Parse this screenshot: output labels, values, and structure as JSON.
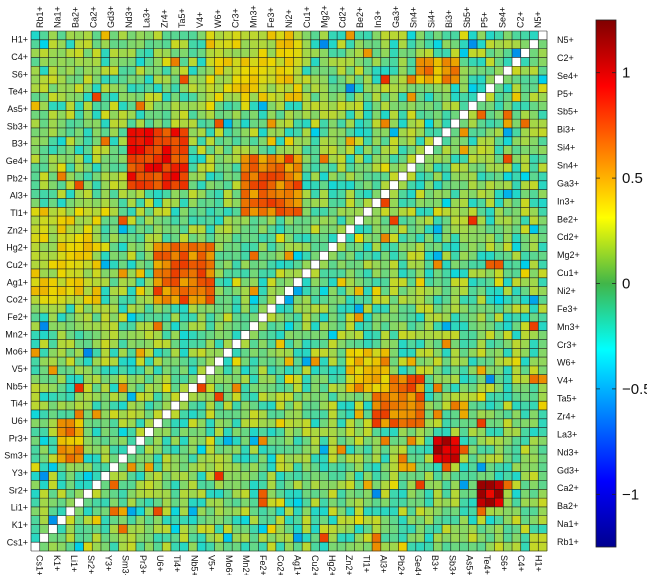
{
  "chart_data": {
    "type": "heatmap",
    "rows_left": [
      "H1+",
      "C4+",
      "S6+",
      "Te4+",
      "As5+",
      "Sb3+",
      "B3+",
      "Ge4+",
      "Pb2+",
      "Al3+",
      "Tl1+",
      "Zn2+",
      "Hg2+",
      "Cu2+",
      "Ag1+",
      "Co2+",
      "Fe2+",
      "Mn2+",
      "Mo6+",
      "V5+",
      "Nb5+",
      "Ti4+",
      "U6+",
      "Pr3+",
      "Sm3+",
      "Y3+",
      "Sr2+",
      "Li1+",
      "K1+",
      "Cs1+"
    ],
    "rows_right": [
      "N5+",
      "C2+",
      "Se4+",
      "P5+",
      "Sb5+",
      "Bi3+",
      "Si4+",
      "Sn4+",
      "Ga3+",
      "In3+",
      "Be2+",
      "Cd2+",
      "Mg2+",
      "Cu1+",
      "Ni2+",
      "Fe3+",
      "Mn3+",
      "Cr3+",
      "W6+",
      "V4+",
      "Ta5+",
      "Zr4+",
      "La3+",
      "Nd3+",
      "Gd3+",
      "Ca2+",
      "Ba2+",
      "Na1+",
      "Rb1+"
    ],
    "cols_top": [
      "Rb1+",
      "Na1+",
      "Ba2+",
      "Ca2+",
      "Gd3+",
      "Nd3+",
      "La3+",
      "Zr4+",
      "Ta5+",
      "V4+",
      "W6+",
      "Cr3+",
      "Mn3+",
      "Fe3+",
      "Ni2+",
      "Cu1+",
      "Mg2+",
      "Cd2+",
      "Be2+",
      "In3+",
      "Ga3+",
      "Sn4+",
      "Si4+",
      "Bi3+",
      "Sb5+",
      "P5+",
      "Se4+",
      "C2+",
      "N5+"
    ],
    "cols_bottom": [
      "Cs1+",
      "K1+",
      "Li1+",
      "Sr2+",
      "Y3+",
      "Sm3+",
      "Pr3+",
      "U6+",
      "Ti4+",
      "Nb5+",
      "V5+",
      "Mo6+",
      "Mn2+",
      "Fe2+",
      "Co2+",
      "Ag1+",
      "Cu2+",
      "Hg2+",
      "Zn2+",
      "Tl1+",
      "Al3+",
      "Pb2+",
      "Ge4+",
      "B3+",
      "Sb3+",
      "As5+",
      "Te4+",
      "S6+",
      "C4+",
      "H1+"
    ],
    "grid_size": 59,
    "value_range": [
      -1.25,
      1.25
    ],
    "colorbar_ticks": [
      "1",
      "0.5",
      "0",
      "−0.5",
      "−1"
    ],
    "colormap": "jet",
    "diagonal": "white",
    "blocks": [
      {
        "rows": [
          11,
          17
        ],
        "cols": [
          11,
          17
        ],
        "level": 0.8
      },
      {
        "rows": [
          39,
          44
        ],
        "cols": [
          39,
          44
        ],
        "level": 0.6
      },
      {
        "rows": [
          14,
          20
        ],
        "cols": [
          24,
          30
        ],
        "level": 0.6
      },
      {
        "rows": [
          24,
          30
        ],
        "cols": [
          14,
          20
        ],
        "level": 0.6
      },
      {
        "rows": [
          46,
          48
        ],
        "cols": [
          46,
          48
        ],
        "level": 1.0
      },
      {
        "rows": [
          51,
          53
        ],
        "cols": [
          51,
          53
        ],
        "level": 1.0
      },
      {
        "rows": [
          0,
          7
        ],
        "cols": [
          20,
          30
        ],
        "level": 0.25
      },
      {
        "rows": [
          20,
          30
        ],
        "cols": [
          0,
          7
        ],
        "level": 0.25
      },
      {
        "rows": [
          3,
          5
        ],
        "cols": [
          44,
          48
        ],
        "level": 0.5
      },
      {
        "rows": [
          44,
          48
        ],
        "cols": [
          3,
          5
        ],
        "level": 0.5
      },
      {
        "rows": [
          36,
          40
        ],
        "cols": [
          36,
          40
        ],
        "level": 0.4
      }
    ]
  }
}
